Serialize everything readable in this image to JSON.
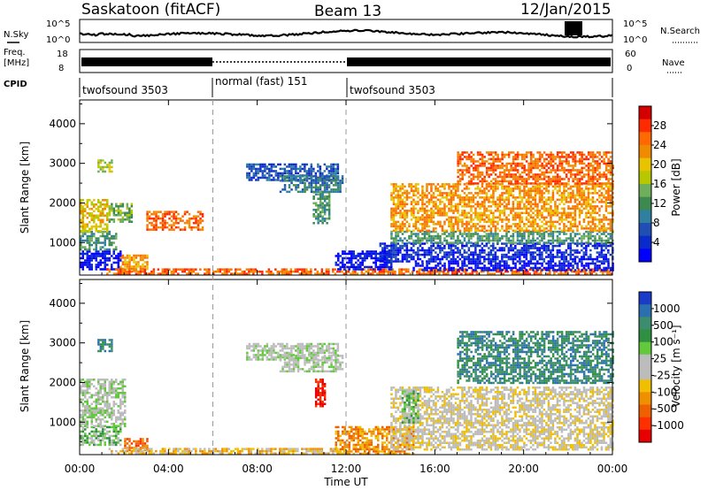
{
  "header": {
    "station": "Saskatoon (fitACF)",
    "beam": "Beam 13",
    "date": "12/Jan/2015"
  },
  "noise_panel": {
    "left_label_1": "N.Sky",
    "right_label": "N.Search",
    "left_ticks": [
      "10^5",
      "10^0"
    ],
    "right_ticks": [
      "10^5",
      "10^0"
    ]
  },
  "freq_panel": {
    "left_label_1": "Freq.",
    "left_label_2": "[MHz]",
    "right_label": "Nave",
    "left_ticks": [
      "18",
      "8"
    ],
    "right_ticks": [
      "60",
      "0"
    ]
  },
  "cpid": {
    "label": "CPID",
    "segments": [
      {
        "name": "twofsound 3503",
        "start_hour": 0,
        "end_hour": 6
      },
      {
        "name": "normal (fast) 151",
        "start_hour": 6,
        "end_hour": 12
      },
      {
        "name": "twofsound 3503",
        "start_hour": 12,
        "end_hour": 24
      }
    ]
  },
  "power_colorbar": {
    "title": "Power [dB]",
    "labels": [
      "28",
      "24",
      "20",
      "16",
      "12",
      "8",
      "4"
    ],
    "colors": [
      "#d40000",
      "#ff2a00",
      "#ff6a00",
      "#f08a00",
      "#e8c400",
      "#b8c800",
      "#6fae5a",
      "#3c8a50",
      "#2f7f9e",
      "#1f4fb4",
      "#0a2acc",
      "#0000ff"
    ]
  },
  "velocity_colorbar": {
    "title": "Velocity [m s⁻¹]",
    "labels": [
      "1000",
      "500",
      "100",
      "25",
      "-25",
      "-100",
      "-500",
      "-1000"
    ],
    "colors": [
      "#1a3cc8",
      "#2a6fb0",
      "#3c8c6e",
      "#2e9040",
      "#62c83c",
      "#bcbcbc",
      "#bcbcbc",
      "#f0c000",
      "#f09000",
      "#ee6000",
      "#ff3000",
      "#e80000"
    ]
  },
  "chart_data": {
    "type": "heatmap",
    "x_axis": {
      "label": "Time UT",
      "ticks": [
        "00:00",
        "04:00",
        "08:00",
        "12:00",
        "16:00",
        "20:00",
        "00:00"
      ],
      "range_hours": [
        0,
        24
      ]
    },
    "y_axis": {
      "label": "Slant Range [km]",
      "ticks": [
        "1000",
        "2000",
        "3000",
        "4000"
      ],
      "range_km": [
        180,
        4600
      ]
    },
    "dashed_markers_hours": [
      6,
      12
    ],
    "panels": [
      {
        "name": "power",
        "regions": [
          {
            "t0": 0.0,
            "t1": 1.8,
            "r0": 300,
            "r1": 800,
            "level": 11
          },
          {
            "t0": 0.0,
            "t1": 1.6,
            "r0": 800,
            "r1": 1300,
            "level": 7
          },
          {
            "t0": 0.0,
            "t1": 1.2,
            "r0": 1300,
            "r1": 2100,
            "level": 4
          },
          {
            "t0": 1.3,
            "t1": 2.3,
            "r0": 1500,
            "r1": 2000,
            "level": 6
          },
          {
            "t0": 1.8,
            "t1": 3.0,
            "r0": 300,
            "r1": 700,
            "level": 3
          },
          {
            "t0": 3.0,
            "t1": 5.5,
            "r0": 1300,
            "r1": 1800,
            "level": 2
          },
          {
            "t0": 7.5,
            "t1": 11.6,
            "r0": 2600,
            "r1": 3000,
            "level": 9
          },
          {
            "t0": 9.0,
            "t1": 11.8,
            "r0": 2300,
            "r1": 2700,
            "level": 8
          },
          {
            "t0": 10.5,
            "t1": 11.2,
            "r0": 1500,
            "r1": 2300,
            "level": 7
          },
          {
            "t0": 1.2,
            "t1": 24.0,
            "r0": 200,
            "r1": 350,
            "level": 2
          },
          {
            "t0": 11.5,
            "t1": 14.0,
            "r0": 300,
            "r1": 800,
            "level": 11
          },
          {
            "t0": 13.5,
            "t1": 24.0,
            "r0": 500,
            "r1": 1000,
            "level": 10
          },
          {
            "t0": 14.0,
            "t1": 24.0,
            "r0": 1000,
            "r1": 1300,
            "level": 7
          },
          {
            "t0": 15.0,
            "t1": 24.0,
            "r0": 300,
            "r1": 500,
            "level": 11
          },
          {
            "t0": 14.0,
            "t1": 24.0,
            "r0": 1300,
            "r1": 2500,
            "level": 3
          },
          {
            "t0": 17.0,
            "t1": 24.0,
            "r0": 2500,
            "r1": 3300,
            "level": 2
          },
          {
            "t0": 0.8,
            "t1": 1.4,
            "r0": 2800,
            "r1": 3100,
            "level": 5
          }
        ]
      },
      {
        "name": "velocity",
        "regions": [
          {
            "t0": 0.0,
            "t1": 1.8,
            "r0": 400,
            "r1": 900,
            "level": 4
          },
          {
            "t0": 0.0,
            "t1": 2.0,
            "r0": 900,
            "r1": 2100,
            "level": 5
          },
          {
            "t0": 2.0,
            "t1": 3.0,
            "r0": 300,
            "r1": 600,
            "level": 9
          },
          {
            "t0": 7.5,
            "t1": 11.6,
            "r0": 2600,
            "r1": 3000,
            "level": 5
          },
          {
            "t0": 9.0,
            "t1": 11.8,
            "r0": 2300,
            "r1": 2700,
            "level": 5
          },
          {
            "t0": 10.6,
            "t1": 11.0,
            "r0": 1400,
            "r1": 2100,
            "level": 11
          },
          {
            "t0": 1.2,
            "t1": 12.0,
            "r0": 200,
            "r1": 350,
            "level": 7
          },
          {
            "t0": 11.5,
            "t1": 15.0,
            "r0": 200,
            "r1": 900,
            "level": 8
          },
          {
            "t0": 14.0,
            "t1": 24.0,
            "r0": 300,
            "r1": 1900,
            "level": 6
          },
          {
            "t0": 14.5,
            "t1": 15.2,
            "r0": 1000,
            "r1": 1800,
            "level": 4
          },
          {
            "t0": 17.0,
            "t1": 24.0,
            "r0": 2000,
            "r1": 3300,
            "level": 2
          },
          {
            "t0": 0.8,
            "t1": 1.4,
            "r0": 2800,
            "r1": 3100,
            "level": 2
          }
        ]
      }
    ]
  }
}
